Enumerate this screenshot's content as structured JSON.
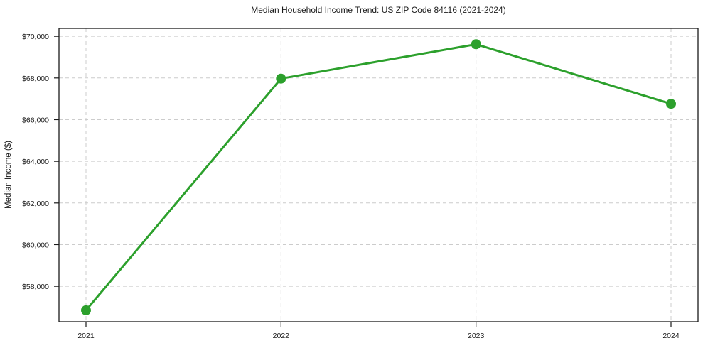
{
  "chart_data": {
    "type": "line",
    "title": "Median Household Income Trend: US ZIP Code 84116 (2021-2024)",
    "xlabel": "",
    "ylabel": "Median Income ($)",
    "categories": [
      "2021",
      "2022",
      "2023",
      "2024"
    ],
    "values": [
      56850,
      67970,
      69620,
      66760
    ],
    "ytick_values": [
      58000,
      60000,
      62000,
      64000,
      66000,
      68000,
      70000
    ],
    "ytick_labels": [
      "$58,000",
      "$60,000",
      "$62,000",
      "$64,000",
      "$66,000",
      "$68,000",
      "$70,000"
    ],
    "ylim": [
      56300,
      70380
    ],
    "grid": true,
    "grid_style": "dashed",
    "legend_position": "none",
    "marker": "circle",
    "colors": {
      "line": "#2ca02c",
      "marker": "#2ca02c",
      "grid": "#cccccc",
      "axis": "#1a1a1a",
      "background": "#ffffff"
    }
  }
}
